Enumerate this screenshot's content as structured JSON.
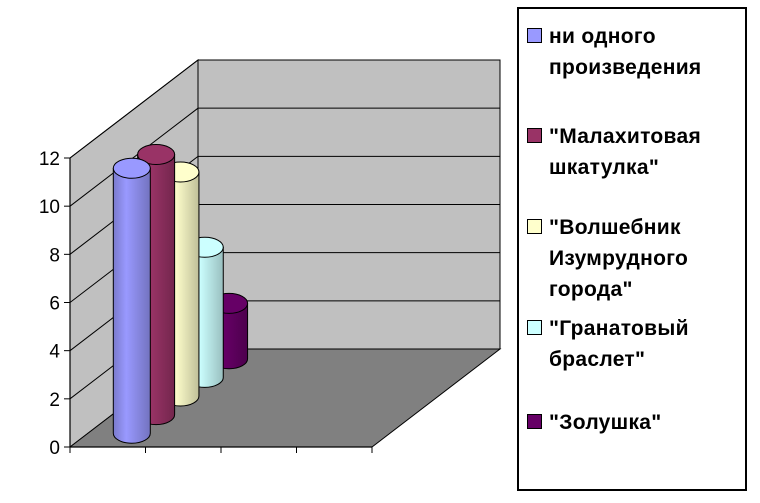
{
  "chart_data": {
    "type": "bar",
    "style": "3d-cylinder",
    "categories": [
      ""
    ],
    "series": [
      {
        "name": "ни одного\nпроизведения",
        "values": [
          11
        ],
        "color": "#9999ff"
      },
      {
        "name": "\"Малахитовая\nшкатулка\"",
        "values": [
          10.8
        ],
        "color": "#993366"
      },
      {
        "name": "\"Волшебник\nИзумрудного\nгорода\"",
        "values": [
          9.3
        ],
        "color": "#ffffcc"
      },
      {
        "name": "\"Гранатовый\nбраслет\"",
        "values": [
          5.4
        ],
        "color": "#ccffff"
      },
      {
        "name": "\"Золушка\"",
        "values": [
          2.3
        ],
        "color": "#660066"
      }
    ],
    "ylim": [
      0,
      12
    ],
    "yticks": [
      "0",
      "2",
      "4",
      "6",
      "8",
      "10",
      "12"
    ],
    "grid": true,
    "legend": "right"
  }
}
